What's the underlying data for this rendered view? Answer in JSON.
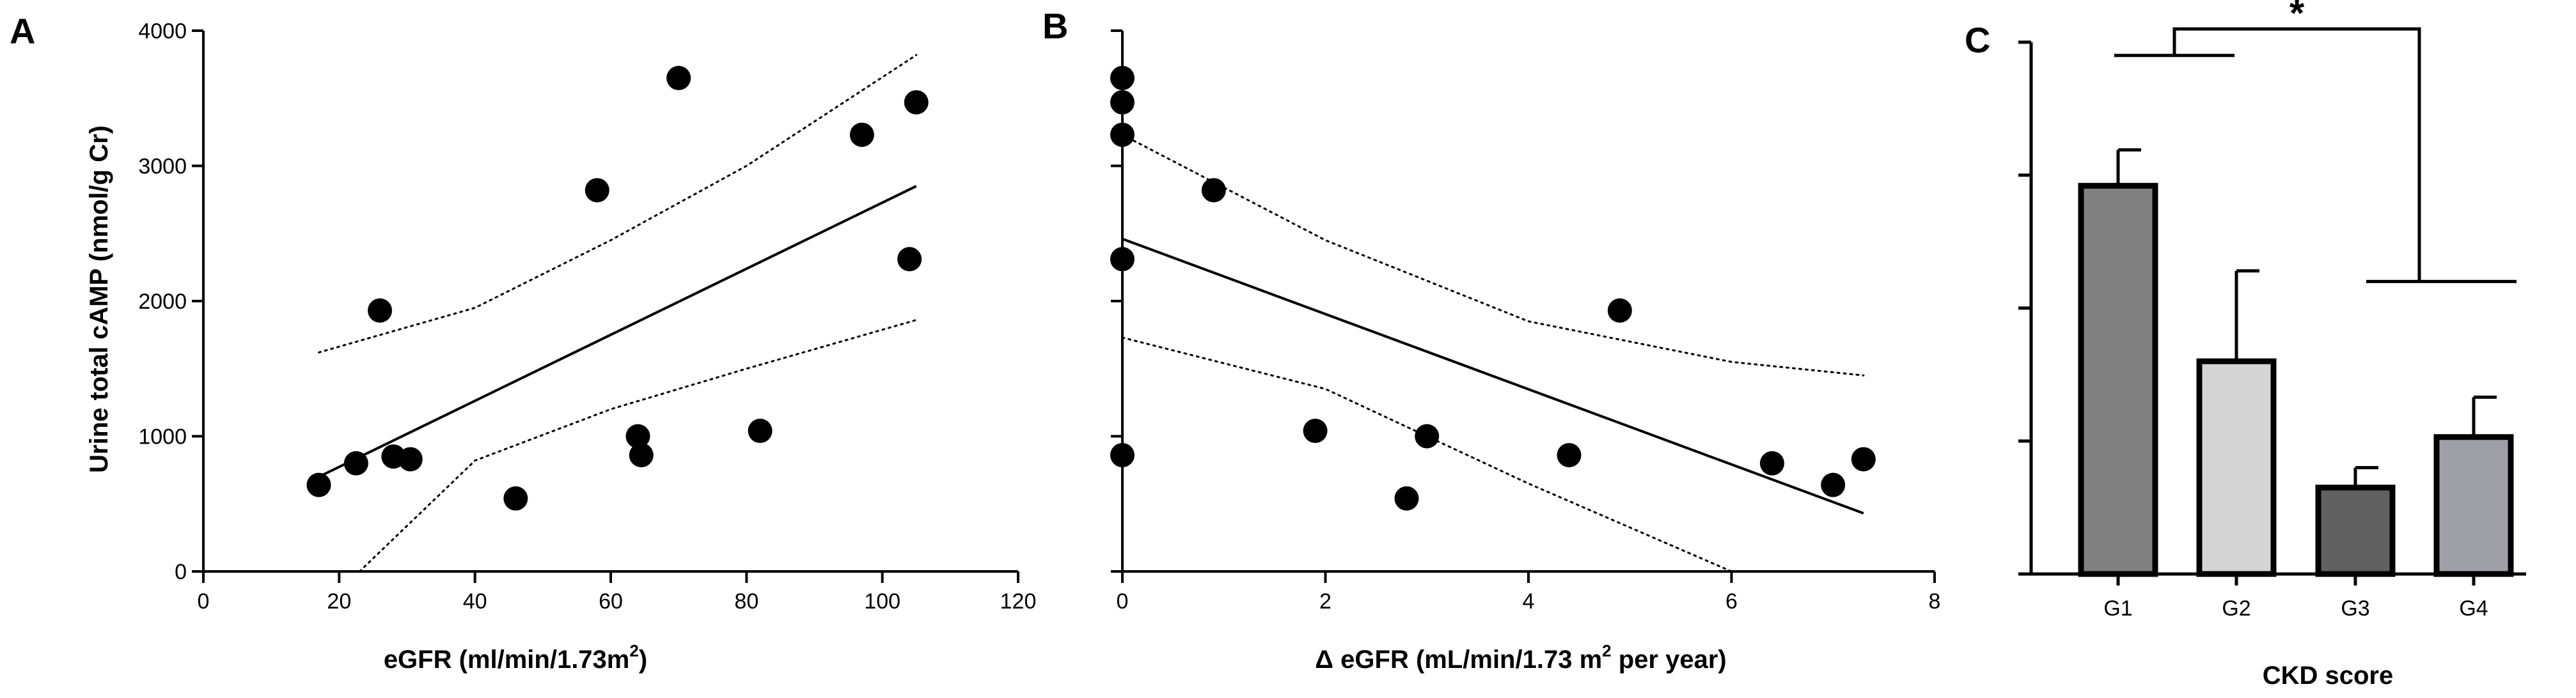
{
  "chart_data": [
    {
      "panel": "A",
      "type": "scatter",
      "xlabel": "eGFR (ml/min/1.73m",
      "xlabel_sup": "2",
      "xlabel_end": ")",
      "ylabel": "Urine total cAMP (nmol/g Cr)",
      "xlim": [
        0,
        120
      ],
      "ylim": [
        0,
        4000
      ],
      "xticks": [
        0,
        20,
        40,
        60,
        80,
        100,
        120
      ],
      "yticks": [
        0,
        1000,
        2000,
        3000,
        4000
      ],
      "points": [
        [
          17,
          640
        ],
        [
          22.5,
          800
        ],
        [
          26,
          1930
        ],
        [
          28,
          850
        ],
        [
          30.5,
          830
        ],
        [
          46,
          540
        ],
        [
          58,
          2820
        ],
        [
          64,
          1000
        ],
        [
          64.5,
          860
        ],
        [
          70,
          3650
        ],
        [
          82,
          1040
        ],
        [
          97,
          3230
        ],
        [
          104,
          2310
        ],
        [
          105,
          3470
        ]
      ],
      "fit_line": [
        [
          17,
          700
        ],
        [
          105,
          2850
        ]
      ],
      "ci_upper": [
        [
          17,
          1620
        ],
        [
          40,
          1950
        ],
        [
          60,
          2450
        ],
        [
          80,
          3000
        ],
        [
          105,
          3820
        ]
      ],
      "ci_lower": [
        [
          23,
          0
        ],
        [
          40,
          820
        ],
        [
          60,
          1200
        ],
        [
          80,
          1500
        ],
        [
          105,
          1860
        ]
      ]
    },
    {
      "panel": "B",
      "type": "scatter",
      "xlabel": "Δ eGFR (mL/min/1.73 m",
      "xlabel_sup": "2",
      "xlabel_end": " per year)",
      "xlim": [
        0,
        8
      ],
      "ylim": [
        0,
        4000
      ],
      "xticks": [
        0,
        2,
        4,
        6,
        8
      ],
      "yticks": [
        0,
        1000,
        2000,
        3000,
        4000
      ],
      "show_ytick_labels": false,
      "points": [
        [
          0,
          3650
        ],
        [
          0,
          3470
        ],
        [
          0,
          3230
        ],
        [
          0,
          2310
        ],
        [
          0,
          860
        ],
        [
          0.9,
          2820
        ],
        [
          1.9,
          1040
        ],
        [
          2.8,
          540
        ],
        [
          3.0,
          1000
        ],
        [
          4.4,
          860
        ],
        [
          4.9,
          1930
        ],
        [
          6.4,
          800
        ],
        [
          7.0,
          640
        ],
        [
          7.3,
          830
        ]
      ],
      "fit_line": [
        [
          0,
          2460
        ],
        [
          7.3,
          430
        ]
      ],
      "ci_upper": [
        [
          0,
          3230
        ],
        [
          2,
          2450
        ],
        [
          4,
          1850
        ],
        [
          6,
          1550
        ],
        [
          7.3,
          1450
        ]
      ],
      "ci_lower": [
        [
          0,
          1730
        ],
        [
          2,
          1350
        ],
        [
          4,
          650
        ],
        [
          6,
          0
        ]
      ]
    },
    {
      "panel": "C",
      "type": "bar",
      "xlabel": "CKD score",
      "categories": [
        "G1",
        "G2",
        "G3",
        "G4"
      ],
      "values": [
        2.92,
        1.6,
        0.65,
        1.03
      ],
      "errors": [
        0.27,
        0.68,
        0.15,
        0.3
      ],
      "colors": [
        "#808080",
        "#d4d4d4",
        "#616161",
        "#9f9fa8"
      ],
      "ylim": [
        0,
        4
      ],
      "yticks": [
        0,
        1,
        2,
        3,
        4
      ],
      "show_ytick_labels": false,
      "significance": "*",
      "bracket_groups": [
        [
          "G1",
          "G2"
        ],
        [
          "G3",
          "G4"
        ]
      ],
      "bracket_levels": [
        3.9,
        2.2,
        4.1
      ]
    }
  ]
}
